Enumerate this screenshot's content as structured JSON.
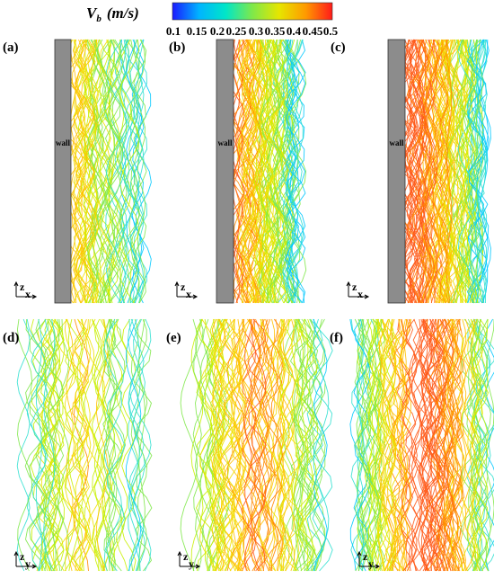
{
  "colorbar": {
    "title_main": "V",
    "title_sub": "b",
    "title_unit": "(m/s)",
    "ticks": [
      "0.1",
      "0.15",
      "0.2",
      "0.25",
      "0.3",
      "0.35",
      "0.4",
      "0.45",
      "0.5"
    ],
    "colors": [
      "#1a1aff",
      "#00b4ff",
      "#00e6c8",
      "#7fe84a",
      "#e6e600",
      "#ff9a00",
      "#ff1a1a"
    ]
  },
  "panels": [
    {
      "label": "(a)",
      "view": "side",
      "wall_label": "wall",
      "axis_vertical": "z",
      "axis_horizontal": "x"
    },
    {
      "label": "(b)",
      "view": "side",
      "wall_label": "wall",
      "axis_vertical": "z",
      "axis_horizontal": "x"
    },
    {
      "label": "(c)",
      "view": "side",
      "wall_label": "wall",
      "axis_vertical": "z",
      "axis_horizontal": "x"
    },
    {
      "label": "(d)",
      "view": "front",
      "axis_vertical": "z",
      "axis_horizontal": "y"
    },
    {
      "label": "(e)",
      "view": "front",
      "axis_vertical": "z",
      "axis_horizontal": "y"
    },
    {
      "label": "(f)",
      "view": "front",
      "axis_vertical": "z",
      "axis_horizontal": "y"
    }
  ],
  "colors": {
    "wall_fill": "#8c8c8c",
    "wall_stroke": "#333333"
  }
}
